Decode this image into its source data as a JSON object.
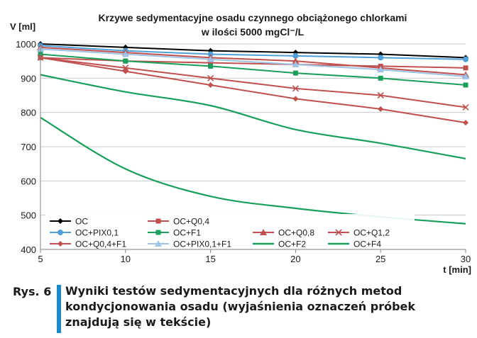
{
  "chart_data": {
    "type": "line",
    "title": "Krzywe sedymentacyjne osadu czynnego obciążonego chlorkami",
    "subtitle": "w ilości 5000 mgCl⁻/L",
    "ylabel": "V [ml]",
    "xlabel": "t [min]",
    "x": [
      5,
      10,
      15,
      20,
      25,
      30
    ],
    "xticks": [
      5,
      10,
      15,
      20,
      25,
      30
    ],
    "yticks": [
      400,
      500,
      600,
      700,
      800,
      900,
      1000
    ],
    "xlim": [
      5,
      30
    ],
    "ylim": [
      400,
      1000
    ],
    "grid": "horizontal",
    "legend": "bottom-inside",
    "series": [
      {
        "name": "OC",
        "color": "#000000",
        "marker": "diamond",
        "values": [
          1000,
          990,
          980,
          975,
          970,
          960
        ]
      },
      {
        "name": "OC+Q0,4",
        "color": "#c0504d",
        "marker": "square",
        "values": [
          960,
          950,
          945,
          940,
          935,
          930
        ]
      },
      {
        "name": "OC+PIX0,1",
        "color": "#4f9fd8",
        "marker": "circle",
        "values": [
          995,
          980,
          970,
          965,
          960,
          955
        ]
      },
      {
        "name": "OC+F1",
        "color": "#18a05a",
        "marker": "square",
        "values": [
          970,
          950,
          935,
          915,
          900,
          880
        ]
      },
      {
        "name": "OC+Q0,8",
        "color": "#c0504d",
        "marker": "triangle",
        "values": [
          990,
          975,
          960,
          950,
          930,
          910
        ]
      },
      {
        "name": "OC+Q1,2",
        "color": "#c0504d",
        "marker": "x",
        "values": [
          960,
          930,
          900,
          870,
          850,
          815
        ]
      },
      {
        "name": "OC+Q0,4+F1",
        "color": "#c0504d",
        "marker": "diamond",
        "values": [
          960,
          920,
          880,
          840,
          810,
          770
        ]
      },
      {
        "name": "OC+PIX0,1+F1",
        "color": "#9dc3e6",
        "marker": "triangle",
        "values": [
          985,
          970,
          955,
          940,
          925,
          905
        ]
      },
      {
        "name": "OC+F2",
        "color": "#18a05a",
        "marker": "none",
        "values": [
          910,
          860,
          820,
          750,
          710,
          665
        ]
      },
      {
        "name": "OC+F4",
        "color": "#18a05a",
        "marker": "none",
        "values": [
          785,
          635,
          555,
          520,
          495,
          475
        ]
      }
    ]
  },
  "caption": {
    "number": "Rys. 6",
    "text": "Wyniki testów sedymentacyjnych dla różnych metod kondycjonowania osadu (wyjaśnienia oznaczeń próbek znajdują się w tekście)"
  }
}
